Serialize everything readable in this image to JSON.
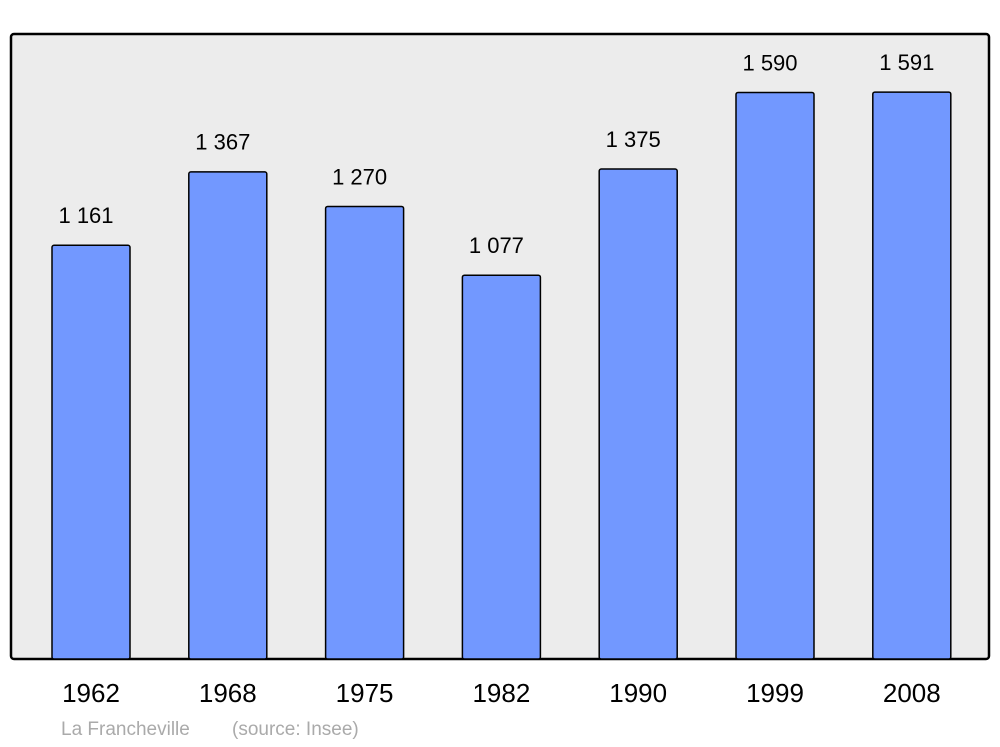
{
  "chart_data": {
    "type": "bar",
    "categories": [
      "1962",
      "1968",
      "1975",
      "1982",
      "1990",
      "1999",
      "2008"
    ],
    "values": [
      1161,
      1367,
      1270,
      1077,
      1375,
      1590,
      1591
    ],
    "value_labels": [
      "1 161",
      "1 367",
      "1 270",
      "1 077",
      "1 375",
      "1 590",
      "1 591"
    ],
    "color": "#7298ff",
    "ylim": [
      0,
      1754
    ],
    "caption": "La Francheville",
    "source": "(source: Insee)"
  }
}
